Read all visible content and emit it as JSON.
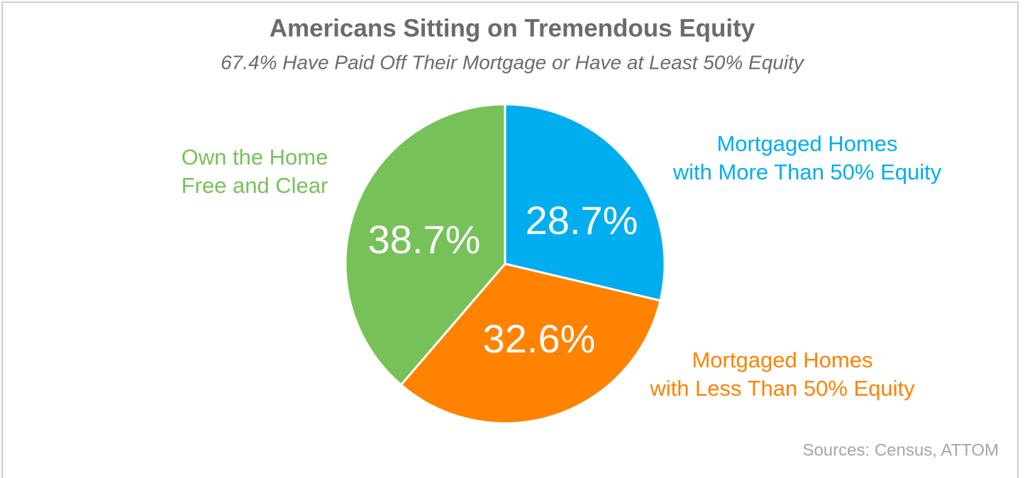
{
  "chart_data": {
    "type": "pie",
    "title": "Americans Sitting on Tremendous Equity",
    "subtitle": "67.4% Have Paid Off Their Mortgage or Have at Least 50% Equity",
    "categories": [
      [
        "Mortgaged Homes",
        "with More Than 50% Equity"
      ],
      [
        "Mortgaged Homes",
        "with Less Than 50% Equity"
      ],
      [
        "Own the Home",
        "Free and Clear"
      ]
    ],
    "values": [
      28.7,
      32.6,
      38.7
    ],
    "value_labels": [
      "28.7%",
      "32.6%",
      "38.7%"
    ],
    "colors": [
      "#00aeef",
      "#ff8200",
      "#77c159"
    ],
    "source": "Sources: Census, ATTOM"
  }
}
